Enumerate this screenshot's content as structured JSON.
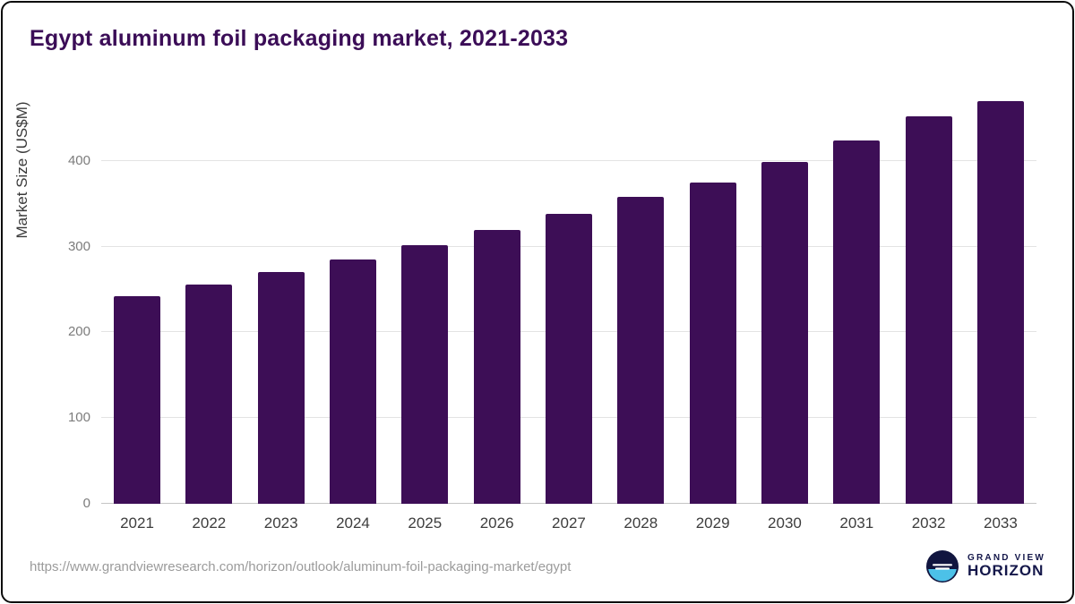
{
  "title": "Egypt aluminum foil packaging market, 2021-2033",
  "footer": {
    "source_url": "https://www.grandviewresearch.com/horizon/outlook/aluminum-foil-packaging-market/egypt",
    "logo_text_top": "GRAND VIEW",
    "logo_text_bottom": "HORIZON"
  },
  "colors": {
    "bar": "#3d0e56",
    "title": "#3b0d57",
    "grid": "#e3e3e3",
    "axis_text": "#7c7c7c",
    "logo_navy": "#14174a",
    "logo_blue": "#4cc1e8"
  },
  "chart_data": {
    "type": "bar",
    "title": "Egypt aluminum foil packaging market, 2021-2033",
    "categories": [
      "2021",
      "2022",
      "2023",
      "2024",
      "2025",
      "2026",
      "2027",
      "2028",
      "2029",
      "2030",
      "2031",
      "2032",
      "2033"
    ],
    "values": [
      242,
      256,
      270,
      285,
      302,
      319,
      338,
      358,
      375,
      399,
      424,
      452,
      470
    ],
    "xlabel": "",
    "ylabel": "Market Size (US$M)",
    "ylim": [
      0,
      480
    ],
    "yticks": [
      0,
      100,
      200,
      300,
      400
    ],
    "grid": true,
    "legend": "none",
    "bar_color": "#3d0e56"
  }
}
